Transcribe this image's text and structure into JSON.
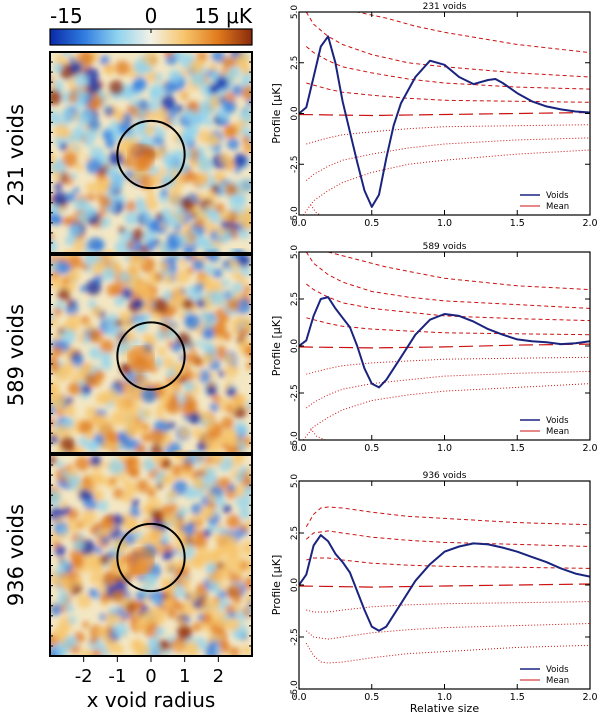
{
  "colorbar": {
    "min_label": "-15",
    "mid_label": "0",
    "max_label": "15 μK",
    "range": [
      -15,
      15
    ],
    "colors": [
      "#0a2aa8",
      "#2f7be0",
      "#8fd3ef",
      "#f4f2e6",
      "#f7c46a",
      "#e07a1c",
      "#8a2a0c"
    ]
  },
  "left_panel": {
    "row_labels": [
      "231 voids",
      "589 voids",
      "936 voids"
    ],
    "xaxis_title": "x void radius",
    "xticks": [
      "-2",
      "-1",
      "0",
      "1",
      "2"
    ],
    "xlim": [
      -3,
      3
    ],
    "circle_radius": 1
  },
  "chart_data": [
    {
      "type": "line",
      "title": "231 voids",
      "xlabel": "",
      "ylabel": "Profile [μK]",
      "xlim": [
        0,
        2
      ],
      "ylim": [
        -5,
        5
      ],
      "xticks": [
        "0.0",
        "0.5",
        "1.0",
        "1.5",
        "2.0"
      ],
      "yticks": [
        "5.0",
        "2.5",
        "0.0",
        "-2.5",
        "-5.0"
      ],
      "legend": [
        "Voids",
        "Mean"
      ],
      "legend_position": "bottom-right",
      "series": [
        {
          "name": "Voids",
          "x": [
            0,
            0.05,
            0.1,
            0.15,
            0.2,
            0.25,
            0.3,
            0.35,
            0.4,
            0.45,
            0.5,
            0.55,
            0.6,
            0.65,
            0.7,
            0.8,
            0.9,
            1.0,
            1.1,
            1.2,
            1.3,
            1.35,
            1.4,
            1.5,
            1.6,
            1.7,
            1.8,
            1.9,
            2.0
          ],
          "y": [
            0,
            0.3,
            1.8,
            3.3,
            3.8,
            2.5,
            0.6,
            -0.9,
            -2.4,
            -3.8,
            -4.6,
            -4.0,
            -2.2,
            -0.6,
            0.5,
            1.8,
            2.6,
            2.4,
            1.8,
            1.45,
            1.65,
            1.7,
            1.5,
            1.0,
            0.6,
            0.35,
            0.2,
            0.1,
            0.05
          ]
        },
        {
          "name": "Mean",
          "x": [
            0,
            0.5,
            1.0,
            1.5,
            2.0
          ],
          "y": [
            -0.05,
            -0.1,
            -0.05,
            0.0,
            0.05
          ]
        }
      ],
      "dashed_envelopes": [
        {
          "x": [
            0.05,
            0.1,
            0.2,
            0.3,
            0.5,
            0.75,
            1.0,
            1.5,
            2.0
          ],
          "y": [
            5.0,
            4.4,
            3.8,
            3.4,
            2.9,
            2.5,
            2.3,
            2.0,
            1.8
          ]
        },
        {
          "x": [
            0.05,
            0.1,
            0.2,
            0.3,
            0.5,
            0.75,
            1.0,
            1.5,
            2.0
          ],
          "y": [
            3.3,
            3.0,
            2.6,
            2.3,
            2.0,
            1.7,
            1.5,
            1.3,
            1.2
          ]
        },
        {
          "x": [
            0.05,
            0.1,
            0.2,
            0.3,
            0.5,
            0.75,
            1.0,
            1.5,
            2.0
          ],
          "y": [
            1.5,
            1.4,
            1.2,
            1.05,
            0.9,
            0.75,
            0.65,
            0.6,
            0.55
          ]
        },
        {
          "x": [
            0.15,
            0.4,
            0.6,
            0.7,
            0.8,
            1.0,
            1.5,
            2.0
          ],
          "y": [
            5.0,
            5.0,
            4.7,
            4.5,
            4.3,
            4.0,
            3.4,
            3.0
          ]
        }
      ],
      "dotted_envelopes": [
        {
          "x": [
            0.05,
            0.1,
            0.2,
            0.3,
            0.5,
            0.75,
            1.0,
            1.5,
            2.0
          ],
          "y": [
            -1.5,
            -1.4,
            -1.2,
            -1.05,
            -0.9,
            -0.75,
            -0.65,
            -0.6,
            -0.55
          ]
        },
        {
          "x": [
            0.05,
            0.1,
            0.2,
            0.3,
            0.5,
            0.75,
            1.0,
            1.5,
            2.0
          ],
          "y": [
            -3.3,
            -3.0,
            -2.6,
            -2.3,
            -2.0,
            -1.7,
            -1.5,
            -1.3,
            -1.2
          ]
        },
        {
          "x": [
            0.03,
            0.06,
            0.1,
            0.2,
            0.3,
            0.5,
            0.75,
            1.0,
            1.5,
            2.0
          ],
          "y": [
            -5.0,
            -4.7,
            -4.3,
            -3.8,
            -3.4,
            -2.9,
            -2.5,
            -2.3,
            -2.0,
            -1.8
          ]
        },
        {
          "x": [
            0.08,
            0.12,
            0.15
          ],
          "y": [
            -4.5,
            -4.9,
            -5.0
          ]
        }
      ]
    },
    {
      "type": "line",
      "title": "589 voids",
      "xlabel": "",
      "ylabel": "Profile [μK]",
      "xlim": [
        0,
        2
      ],
      "ylim": [
        -5,
        5
      ],
      "xticks": [
        "0.0",
        "0.5",
        "1.0",
        "1.5",
        "2.0"
      ],
      "yticks": [
        "5.0",
        "2.5",
        "0.0",
        "-2.5",
        "-5.0"
      ],
      "legend": [
        "Voids",
        "Mean"
      ],
      "legend_position": "bottom-right",
      "series": [
        {
          "name": "Voids",
          "x": [
            0,
            0.05,
            0.1,
            0.15,
            0.2,
            0.25,
            0.3,
            0.35,
            0.4,
            0.45,
            0.5,
            0.55,
            0.6,
            0.7,
            0.8,
            0.9,
            1.0,
            1.1,
            1.2,
            1.3,
            1.4,
            1.5,
            1.6,
            1.7,
            1.8,
            1.9,
            2.0
          ],
          "y": [
            0,
            0.3,
            1.6,
            2.5,
            2.6,
            2.0,
            1.5,
            1.0,
            0.0,
            -1.2,
            -2.0,
            -2.2,
            -1.8,
            -0.6,
            0.6,
            1.4,
            1.7,
            1.6,
            1.3,
            0.9,
            0.6,
            0.35,
            0.25,
            0.2,
            0.1,
            0.15,
            0.25
          ]
        },
        {
          "name": "Mean",
          "x": [
            0,
            0.5,
            1.0,
            1.5,
            2.0
          ],
          "y": [
            -0.05,
            -0.1,
            -0.05,
            0.05,
            0.1
          ]
        }
      ],
      "dashed_envelopes": [
        {
          "x": [
            0.05,
            0.1,
            0.2,
            0.3,
            0.5,
            0.75,
            1.0,
            1.5,
            2.0
          ],
          "y": [
            5.0,
            4.4,
            3.8,
            3.4,
            2.9,
            2.6,
            2.4,
            2.2,
            2.0
          ]
        },
        {
          "x": [
            0.05,
            0.1,
            0.2,
            0.3,
            0.5,
            0.75,
            1.0,
            1.5,
            2.0
          ],
          "y": [
            3.3,
            3.0,
            2.6,
            2.3,
            2.0,
            1.8,
            1.6,
            1.45,
            1.35
          ]
        },
        {
          "x": [
            0.05,
            0.1,
            0.2,
            0.3,
            0.5,
            0.75,
            1.0,
            1.5,
            2.0
          ],
          "y": [
            1.5,
            1.4,
            1.2,
            1.05,
            0.9,
            0.8,
            0.7,
            0.65,
            0.6
          ]
        },
        {
          "x": [
            0.2,
            0.4,
            0.6,
            0.8,
            1.0,
            1.5,
            2.0
          ],
          "y": [
            5.0,
            4.6,
            4.2,
            3.9,
            3.6,
            3.2,
            3.0
          ]
        }
      ],
      "dotted_envelopes": [
        {
          "x": [
            0.05,
            0.1,
            0.2,
            0.3,
            0.5,
            0.75,
            1.0,
            1.5,
            2.0
          ],
          "y": [
            -1.5,
            -1.4,
            -1.2,
            -1.05,
            -0.9,
            -0.8,
            -0.7,
            -0.65,
            -0.6
          ]
        },
        {
          "x": [
            0.05,
            0.1,
            0.2,
            0.3,
            0.5,
            0.75,
            1.0,
            1.5,
            2.0
          ],
          "y": [
            -3.3,
            -3.0,
            -2.6,
            -2.3,
            -2.0,
            -1.8,
            -1.6,
            -1.45,
            -1.35
          ]
        },
        {
          "x": [
            0.03,
            0.06,
            0.1,
            0.2,
            0.3,
            0.5,
            0.75,
            1.0,
            1.5,
            2.0
          ],
          "y": [
            -5.0,
            -4.7,
            -4.3,
            -3.8,
            -3.4,
            -2.9,
            -2.6,
            -2.4,
            -2.2,
            -2.0
          ]
        },
        {
          "x": [
            0.08,
            0.12,
            0.18
          ],
          "y": [
            -4.4,
            -4.8,
            -5.0
          ]
        }
      ]
    },
    {
      "type": "line",
      "title": "936 voids",
      "xlabel": "Relative size",
      "ylabel": "Profile [μK]",
      "xlim": [
        0,
        2
      ],
      "ylim": [
        -5,
        5
      ],
      "xticks": [
        "0.0",
        "0.5",
        "1.0",
        "1.5",
        "2.0"
      ],
      "yticks": [
        "5.0",
        "2.5",
        "0.0",
        "-2.5",
        "-5.0"
      ],
      "legend": [
        "Voids",
        "Mean"
      ],
      "legend_position": "bottom-right",
      "series": [
        {
          "name": "Voids",
          "x": [
            0,
            0.05,
            0.1,
            0.15,
            0.2,
            0.25,
            0.3,
            0.35,
            0.4,
            0.45,
            0.5,
            0.55,
            0.6,
            0.7,
            0.8,
            0.9,
            1.0,
            1.1,
            1.2,
            1.3,
            1.4,
            1.5,
            1.6,
            1.7,
            1.8,
            1.9,
            2.0
          ],
          "y": [
            0,
            0.5,
            1.9,
            2.4,
            2.1,
            1.5,
            1.1,
            0.6,
            -0.3,
            -1.2,
            -2.0,
            -2.2,
            -2.0,
            -0.9,
            0.2,
            1.0,
            1.6,
            1.85,
            2.0,
            1.95,
            1.8,
            1.6,
            1.35,
            1.1,
            0.8,
            0.55,
            0.4
          ]
        },
        {
          "name": "Mean",
          "x": [
            0,
            0.5,
            1.0,
            1.5,
            2.0
          ],
          "y": [
            -0.05,
            -0.1,
            -0.05,
            0.0,
            0.05
          ]
        }
      ],
      "dashed_envelopes": [
        {
          "x": [
            0.05,
            0.1,
            0.15,
            0.2,
            0.3,
            0.5,
            0.75,
            1.0,
            1.5,
            2.0
          ],
          "y": [
            2.8,
            3.4,
            3.7,
            3.75,
            3.7,
            3.5,
            3.3,
            3.2,
            3.0,
            2.9
          ]
        },
        {
          "x": [
            0.05,
            0.1,
            0.2,
            0.3,
            0.5,
            0.75,
            1.0,
            1.5,
            2.0
          ],
          "y": [
            2.2,
            2.5,
            2.6,
            2.5,
            2.3,
            2.15,
            2.05,
            1.95,
            1.85
          ]
        },
        {
          "x": [
            0.05,
            0.1,
            0.2,
            0.3,
            0.5,
            0.75,
            1.0,
            1.5,
            2.0
          ],
          "y": [
            1.2,
            1.3,
            1.3,
            1.2,
            1.05,
            0.95,
            0.9,
            0.85,
            0.8
          ]
        }
      ],
      "dotted_envelopes": [
        {
          "x": [
            0.05,
            0.1,
            0.2,
            0.3,
            0.5,
            0.75,
            1.0,
            1.5,
            2.0
          ],
          "y": [
            -1.2,
            -1.3,
            -1.3,
            -1.2,
            -1.05,
            -0.95,
            -0.9,
            -0.85,
            -0.8
          ]
        },
        {
          "x": [
            0.05,
            0.1,
            0.2,
            0.3,
            0.5,
            0.75,
            1.0,
            1.5,
            2.0
          ],
          "y": [
            -2.2,
            -2.5,
            -2.6,
            -2.5,
            -2.3,
            -2.15,
            -2.05,
            -1.95,
            -1.85
          ]
        },
        {
          "x": [
            0.05,
            0.1,
            0.15,
            0.2,
            0.3,
            0.5,
            0.75,
            1.0,
            1.5,
            2.0
          ],
          "y": [
            -2.8,
            -3.4,
            -3.7,
            -3.75,
            -3.7,
            -3.5,
            -3.3,
            -3.2,
            -3.0,
            -2.9
          ]
        }
      ]
    }
  ]
}
